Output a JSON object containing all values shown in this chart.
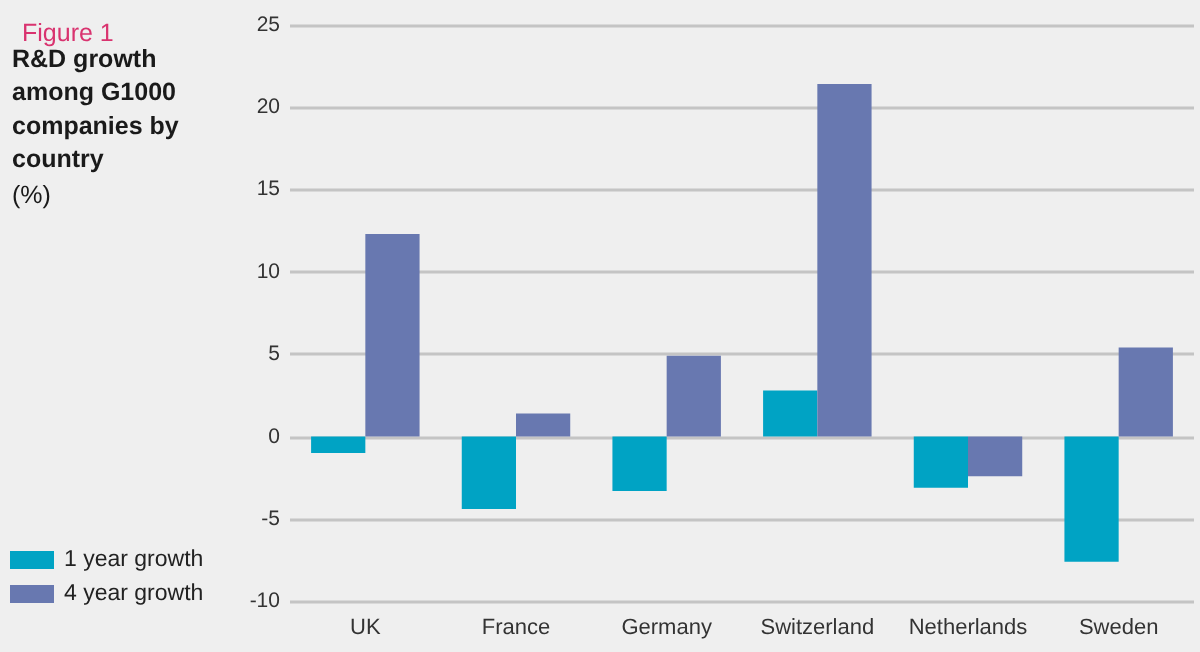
{
  "chart_data": {
    "type": "bar",
    "title": "R&D growth among G1000 companies by country",
    "subtitle": "(%)",
    "annotations": [
      "Figure 1"
    ],
    "categories": [
      "UK",
      "France",
      "Germany",
      "Switzerland",
      "Netherlands",
      "Sweden"
    ],
    "series": [
      {
        "name": "1 year growth",
        "color": "#00a3c4",
        "values": [
          -1.0,
          -4.4,
          -3.3,
          2.8,
          -3.1,
          -7.6
        ]
      },
      {
        "name": "4 year growth",
        "color": "#6878b0",
        "values": [
          12.3,
          1.4,
          4.9,
          21.4,
          -2.4,
          5.4
        ]
      }
    ],
    "ylim": [
      -10,
      25
    ],
    "yticks": [
      -10,
      -5,
      0,
      5,
      10,
      15,
      20,
      25
    ],
    "grid": "y",
    "legend": "bottom left"
  }
}
